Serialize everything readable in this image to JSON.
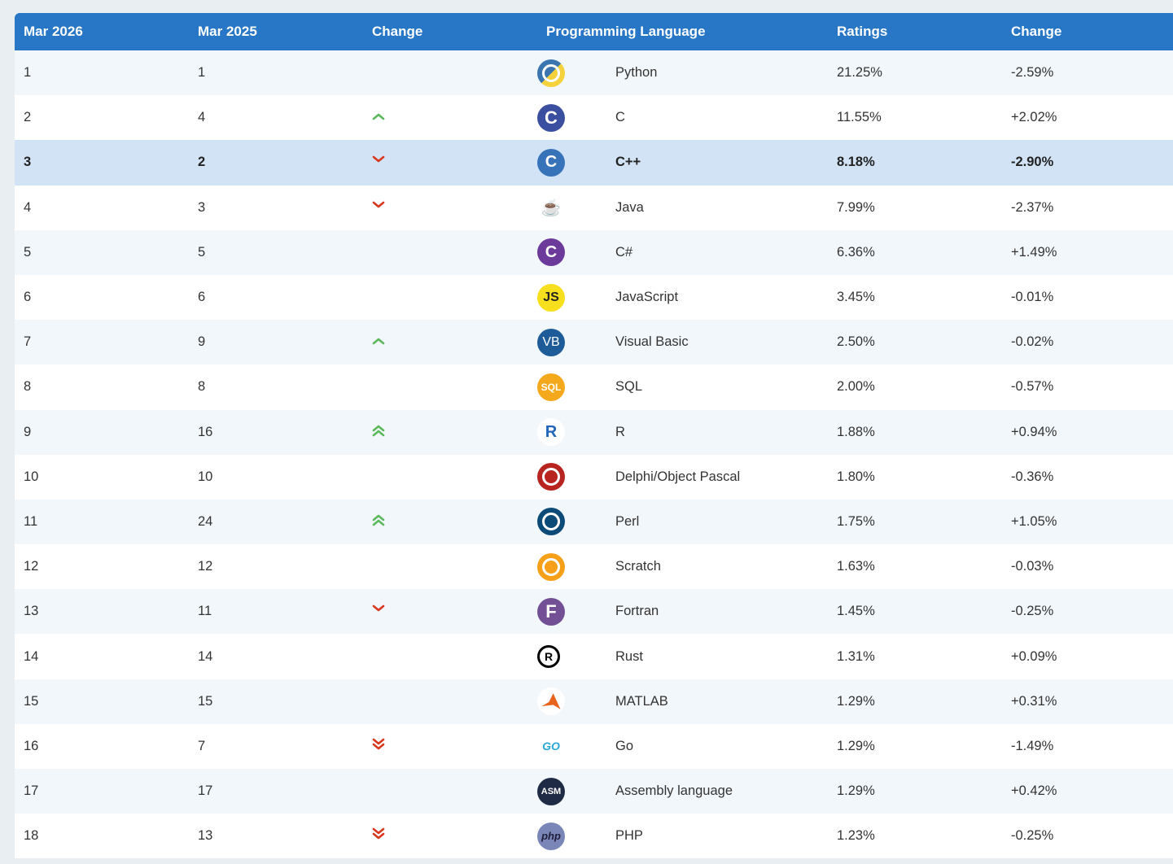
{
  "headers": [
    "Mar 2026",
    "Mar 2025",
    "Change",
    "Programming Language",
    "Ratings",
    "Change"
  ],
  "rows": [
    {
      "rank": "1",
      "prev": "1",
      "trend": "",
      "logo": "python-logo-icon",
      "lang": "Python",
      "rating": "21.25%",
      "change": "-2.59%"
    },
    {
      "rank": "2",
      "prev": "4",
      "trend": "up",
      "logo": "c-logo-icon",
      "lang": "C",
      "rating": "11.55%",
      "change": "+2.02%"
    },
    {
      "rank": "3",
      "prev": "2",
      "trend": "down",
      "logo": "cpp-logo-icon",
      "lang": "C++",
      "rating": "8.18%",
      "change": "-2.90%"
    },
    {
      "rank": "4",
      "prev": "3",
      "trend": "down",
      "logo": "java-logo-icon",
      "lang": "Java",
      "rating": "7.99%",
      "change": "-2.37%"
    },
    {
      "rank": "5",
      "prev": "5",
      "trend": "",
      "logo": "csharp-logo-icon",
      "lang": "C#",
      "rating": "6.36%",
      "change": "+1.49%"
    },
    {
      "rank": "6",
      "prev": "6",
      "trend": "",
      "logo": "javascript-logo-icon",
      "lang": "JavaScript",
      "rating": "3.45%",
      "change": "-0.01%"
    },
    {
      "rank": "7",
      "prev": "9",
      "trend": "up",
      "logo": "visual-basic-logo-icon",
      "lang": "Visual Basic",
      "rating": "2.50%",
      "change": "-0.02%"
    },
    {
      "rank": "8",
      "prev": "8",
      "trend": "",
      "logo": "sql-logo-icon",
      "lang": "SQL",
      "rating": "2.00%",
      "change": "-0.57%"
    },
    {
      "rank": "9",
      "prev": "16",
      "trend": "up2",
      "logo": "r-logo-icon",
      "lang": "R",
      "rating": "1.88%",
      "change": "+0.94%"
    },
    {
      "rank": "10",
      "prev": "10",
      "trend": "",
      "logo": "delphi-logo-icon",
      "lang": "Delphi/Object Pascal",
      "rating": "1.80%",
      "change": "-0.36%"
    },
    {
      "rank": "11",
      "prev": "24",
      "trend": "up2",
      "logo": "perl-logo-icon",
      "lang": "Perl",
      "rating": "1.75%",
      "change": "+1.05%"
    },
    {
      "rank": "12",
      "prev": "12",
      "trend": "",
      "logo": "scratch-logo-icon",
      "lang": "Scratch",
      "rating": "1.63%",
      "change": "-0.03%"
    },
    {
      "rank": "13",
      "prev": "11",
      "trend": "down",
      "logo": "fortran-logo-icon",
      "lang": "Fortran",
      "rating": "1.45%",
      "change": "-0.25%"
    },
    {
      "rank": "14",
      "prev": "14",
      "trend": "",
      "logo": "rust-logo-icon",
      "lang": "Rust",
      "rating": "1.31%",
      "change": "+0.09%"
    },
    {
      "rank": "15",
      "prev": "15",
      "trend": "",
      "logo": "matlab-logo-icon",
      "lang": "MATLAB",
      "rating": "1.29%",
      "change": "+0.31%"
    },
    {
      "rank": "16",
      "prev": "7",
      "trend": "down2",
      "logo": "go-logo-icon",
      "lang": "Go",
      "rating": "1.29%",
      "change": "-1.49%"
    },
    {
      "rank": "17",
      "prev": "17",
      "trend": "",
      "logo": "assembly-logo-icon",
      "lang": "Assembly language",
      "rating": "1.29%",
      "change": "+0.42%"
    },
    {
      "rank": "18",
      "prev": "13",
      "trend": "down2",
      "logo": "php-logo-icon",
      "lang": "PHP",
      "rating": "1.23%",
      "change": "-0.25%"
    }
  ],
  "highlighted_row": 2,
  "logo_text": {
    "javascript-logo-icon": "JS",
    "visual-basic-logo-icon": "VB",
    "sql-logo-icon": "SQL",
    "fortran-logo-icon": "F",
    "assembly-logo-icon": "ASM",
    "php-logo-icon": "php",
    "go-logo-icon": "GO",
    "r-logo-icon": "R",
    "rust-logo-icon": "R"
  },
  "colors": {
    "header_bg": "#2777c6",
    "highlight_bg": "#d1e3f5",
    "up": "#5cb85c",
    "down": "#d9381e"
  }
}
